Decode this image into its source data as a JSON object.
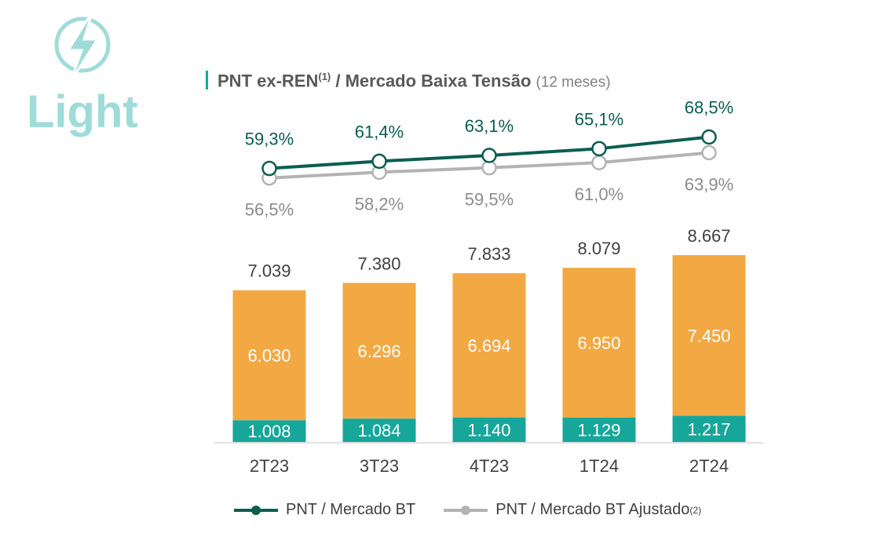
{
  "logo": {
    "text": "Light",
    "color": "#9fdcd9"
  },
  "title": {
    "main": "PNT ex-REN",
    "sup": "(1)",
    "rest": " / Mercado Baixa Tensão",
    "sub": "(12 meses)"
  },
  "colors": {
    "bar_upper": "#f2a943",
    "bar_lower": "#17a69a",
    "line_bt": "#0b5e4f",
    "line_adj": "#b3b3b3",
    "axis": "#d9d9d9"
  },
  "chart_data": {
    "type": "bar",
    "categories": [
      "2T23",
      "3T23",
      "4T23",
      "1T24",
      "2T24"
    ],
    "series": [
      {
        "name": "segment_lower",
        "values": [
          1008,
          1084,
          1140,
          1129,
          1217
        ],
        "labels": [
          "1.008",
          "1.084",
          "1.140",
          "1.129",
          "1.217"
        ]
      },
      {
        "name": "segment_upper",
        "values": [
          6030,
          6296,
          6694,
          6950,
          7450
        ],
        "labels": [
          "6.030",
          "6.296",
          "6.694",
          "6.950",
          "7.450"
        ]
      }
    ],
    "totals": [
      7039,
      7380,
      7833,
      8079,
      8667
    ],
    "total_labels": [
      "7.039",
      "7.380",
      "7.833",
      "8.079",
      "8.667"
    ],
    "lines": [
      {
        "name": "PNT / Mercado BT",
        "values": [
          59.3,
          61.4,
          63.1,
          65.1,
          68.5
        ],
        "labels": [
          "59,3%",
          "61,4%",
          "63,1%",
          "65,1%",
          "68,5%"
        ]
      },
      {
        "name": "PNT / Mercado BT Ajustado",
        "values": [
          56.5,
          58.2,
          59.5,
          61.0,
          63.9
        ],
        "labels": [
          "56,5%",
          "58,2%",
          "59,5%",
          "61,0%",
          "63,9%"
        ]
      }
    ],
    "legend": [
      {
        "label": "PNT / Mercado BT",
        "sup": ""
      },
      {
        "label": "PNT / Mercado BT Ajustado",
        "sup": "(2)"
      }
    ],
    "title": "PNT ex-REN(1) / Mercado Baixa Tensão (12 meses)"
  }
}
